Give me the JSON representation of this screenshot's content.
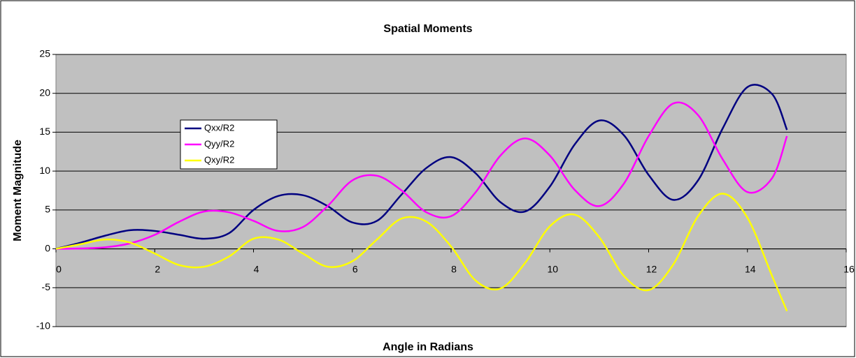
{
  "chart_data": {
    "type": "line",
    "title": "Spatial Moments",
    "x_label": "Angle in Radians",
    "y_label": "Moment Magnitude",
    "x": [
      0,
      0.5,
      1,
      1.5,
      2,
      2.5,
      3,
      3.5,
      4,
      4.5,
      5,
      5.5,
      6,
      6.5,
      7,
      7.5,
      8,
      8.5,
      9,
      9.5,
      10,
      10.5,
      11,
      11.5,
      12,
      12.5,
      13,
      13.5,
      14,
      14.5,
      14.8
    ],
    "series": [
      {
        "name": "Qxx/R2",
        "color": "#000080",
        "values": [
          0,
          0.8,
          1.7,
          2.4,
          2.3,
          1.8,
          1.3,
          2.0,
          5.0,
          6.8,
          6.9,
          5.5,
          3.4,
          3.6,
          7.0,
          10.4,
          11.8,
          9.7,
          6.0,
          4.8,
          8.0,
          13.4,
          16.5,
          14.6,
          9.5,
          6.3,
          8.8,
          15.5,
          20.8,
          19.9,
          15.3
        ]
      },
      {
        "name": "Qyy/R2",
        "color": "#ff00ff",
        "values": [
          0,
          0.05,
          0.2,
          0.7,
          1.8,
          3.5,
          4.8,
          4.7,
          3.6,
          2.3,
          2.8,
          5.5,
          8.8,
          9.4,
          7.5,
          4.7,
          4.2,
          7.3,
          12.0,
          14.2,
          12.0,
          7.6,
          5.5,
          8.4,
          14.5,
          18.7,
          17.2,
          11.5,
          7.3,
          9.1,
          14.5
        ]
      },
      {
        "name": "Qxy/R2",
        "color": "#ffff00",
        "values": [
          0,
          0.6,
          1.2,
          0.8,
          -0.6,
          -2.1,
          -2.3,
          -1.0,
          1.3,
          1.2,
          -0.6,
          -2.3,
          -1.6,
          1.2,
          3.9,
          3.5,
          0.3,
          -4.1,
          -5.1,
          -1.8,
          2.9,
          4.4,
          1.5,
          -3.5,
          -5.3,
          -2.0,
          4.2,
          7.1,
          4.0,
          -3.5,
          -8.0
        ]
      }
    ],
    "xlim": [
      0,
      16
    ],
    "xticks": [
      0,
      2,
      4,
      6,
      8,
      10,
      12,
      14,
      16
    ],
    "ylim": [
      -10,
      25
    ],
    "yticks": [
      -10,
      -5,
      0,
      5,
      10,
      15,
      20,
      25
    ],
    "grid": true,
    "legend": "upper left"
  }
}
